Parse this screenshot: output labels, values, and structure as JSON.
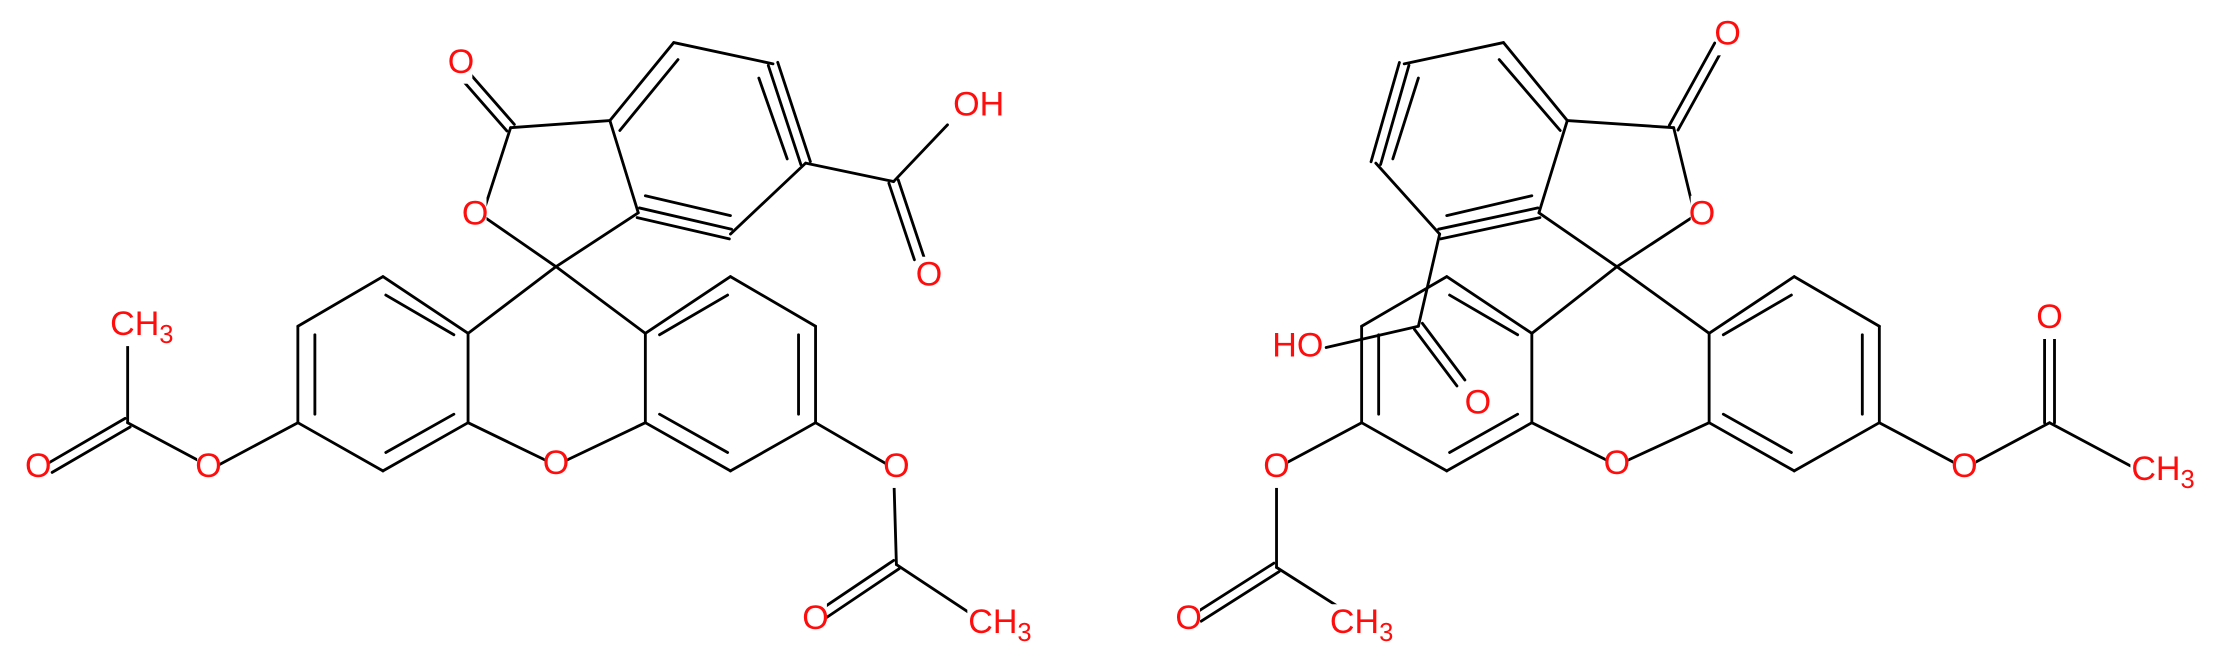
{
  "molecules": [
    {
      "labels": [
        {
          "text": "O"
        },
        {
          "text": "O"
        },
        {
          "text": "OH"
        },
        {
          "text": "O"
        },
        {
          "text": "O"
        },
        {
          "text": "O"
        },
        {
          "text": "CH",
          "sub": "3"
        },
        {
          "text": "O"
        },
        {
          "text": "O"
        },
        {
          "text": "O"
        },
        {
          "text": "CH",
          "sub": "3"
        }
      ]
    },
    {
      "labels": [
        {
          "text": "O"
        },
        {
          "text": "O"
        },
        {
          "text": "HO"
        },
        {
          "text": "O"
        },
        {
          "text": "O"
        },
        {
          "text": "O"
        },
        {
          "text": "CH",
          "sub": "3"
        },
        {
          "text": "O"
        },
        {
          "text": "O"
        },
        {
          "text": "O"
        },
        {
          "text": "CH",
          "sub": "3"
        }
      ]
    }
  ]
}
